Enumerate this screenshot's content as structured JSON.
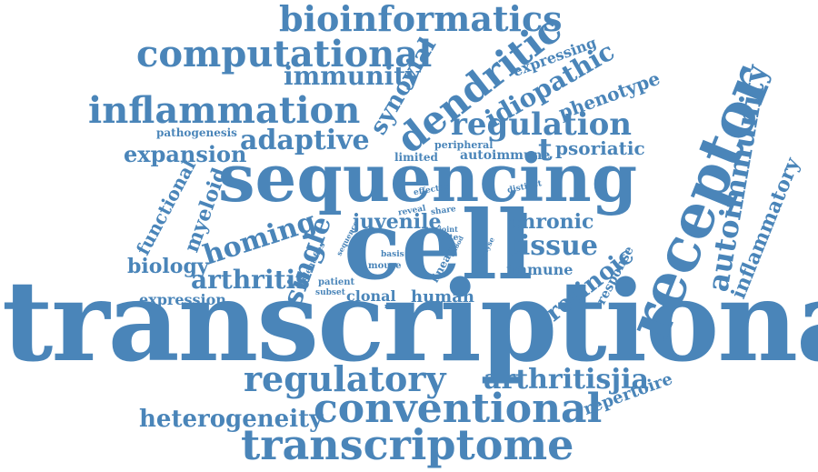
{
  "color": "#4a85b9",
  "words": [
    "transcriptional",
    "sequencing",
    "cell",
    "receptor",
    "transcriptome",
    "conventional",
    "regulatory",
    "computational",
    "bioinformatics",
    "inflammation",
    "dendritic",
    "regulation",
    "autoimmunity",
    "inflammatory",
    "heterogeneity",
    "arthritisjia",
    "adaptive",
    "immunity",
    "synovial",
    "idiopathic",
    "single",
    "homing",
    "juvenile",
    "tissue",
    "chronic",
    "expansion",
    "arthritis",
    "retinoic",
    "myeloid",
    "phenotype",
    "psoriatic",
    "biology",
    "functional",
    "expression",
    "human",
    "clonal",
    "repertoire",
    "expressing",
    "immune",
    "response",
    "pathogenesis",
    "peripheral",
    "limited",
    "autoimmune",
    "effector",
    "distinct",
    "reveal",
    "share",
    "joint",
    "site",
    "analyse",
    "identifies",
    "sequence",
    "basis",
    "mouse",
    "lineage",
    "patient",
    "subset",
    "marker",
    "blood",
    "t"
  ]
}
